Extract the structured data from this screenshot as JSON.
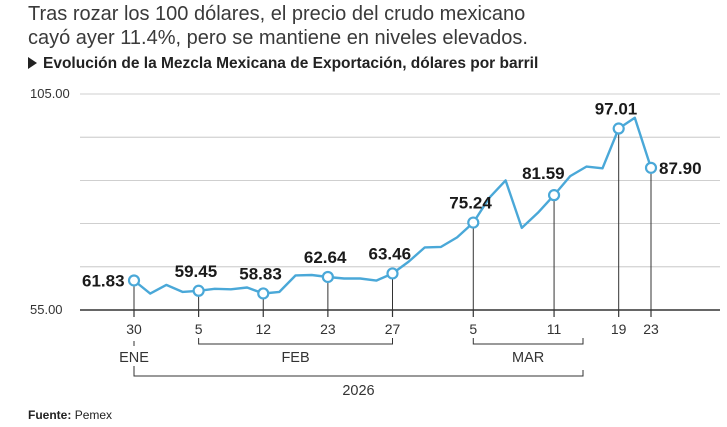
{
  "headline": {
    "line1": "Tras rozar los 100 dólares, el precio del crudo mexicano",
    "line2": "cayó ayer 11.4%, pero se mantiene en niveles elevados."
  },
  "subtitle": "Evolución de la Mezcla Mexicana de Exportación, dólares por barril",
  "source": {
    "label": "Fuente:",
    "value": "Pemex"
  },
  "colors": {
    "line": "#4aa8d8",
    "grid": "#bfbfbf",
    "text": "#1a1a1a"
  },
  "chart_data": {
    "type": "line",
    "title": "Evolución de la Mezcla Mexicana de Exportación, dólares por barril",
    "ylabel": "dólares por barril",
    "ylim": [
      55,
      105
    ],
    "yticks": [
      "105.00",
      "55.00"
    ],
    "x_index_range": [
      0,
      41
    ],
    "series": [
      {
        "name": "Mezcla Mexicana",
        "values": [
          61.83,
          58.8,
          60.8,
          59.2,
          59.45,
          59.9,
          59.8,
          60.2,
          58.83,
          59.2,
          63.0,
          63.1,
          62.64,
          62.3,
          62.3,
          61.8,
          63.46,
          66.2,
          69.5,
          69.6,
          71.8,
          75.24,
          81.0,
          85.0,
          74.0,
          77.5,
          81.59,
          86.0,
          88.2,
          87.8,
          97.01,
          99.5,
          87.9
        ]
      }
    ],
    "x_positions": [
      0,
      1,
      2,
      3,
      4,
      5,
      6,
      7,
      8,
      9,
      10,
      11,
      12,
      13,
      14,
      15,
      16,
      17,
      18,
      19,
      20,
      21,
      22,
      23,
      24,
      25,
      26,
      27,
      28,
      29,
      30,
      31,
      32
    ],
    "highlights": [
      {
        "index": 0,
        "label": "61.83",
        "date": "30"
      },
      {
        "index": 4,
        "label": "59.45",
        "date": "5"
      },
      {
        "index": 8,
        "label": "58.83",
        "date": "12"
      },
      {
        "index": 12,
        "label": "62.64",
        "date": "23"
      },
      {
        "index": 16,
        "label": "63.46",
        "date": "27"
      },
      {
        "index": 21,
        "label": "75.24",
        "date": "5"
      },
      {
        "index": 26,
        "label": "81.59",
        "date": "11"
      },
      {
        "index": 30,
        "label": "97.01",
        "date": "19"
      },
      {
        "index": 32,
        "label": "87.90",
        "date": "23"
      }
    ],
    "months": [
      "ENE",
      "FEB",
      "MAR"
    ],
    "year": "2026"
  }
}
